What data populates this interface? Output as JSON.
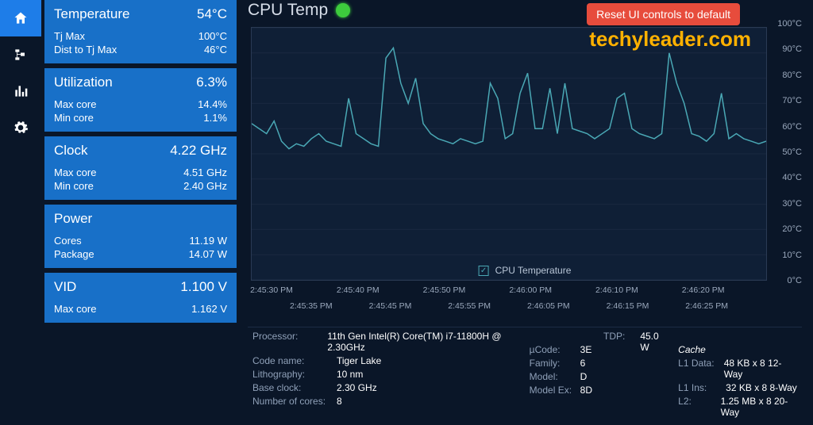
{
  "colors": {
    "bg": "#0a1628",
    "card": "#1870c8",
    "accent": "#1e7de8",
    "line": "#4aa8b5",
    "text": "#b8c5d6",
    "border": "#2a3a54",
    "grid": "#1a2840",
    "tooltip": "#e74c3c",
    "watermark": "#ffb100",
    "green": "#3dcb3d"
  },
  "icon_bar": {
    "items": [
      {
        "name": "home-icon",
        "active": true
      },
      {
        "name": "tree-icon",
        "active": false
      },
      {
        "name": "chart-icon",
        "active": false
      },
      {
        "name": "gear-icon",
        "active": false
      }
    ]
  },
  "cards": {
    "temp": {
      "title": "Temperature",
      "value": "54°C",
      "rows": [
        {
          "label": "Tj Max",
          "value": "100°C"
        },
        {
          "label": "Dist to Tj Max",
          "value": "46°C"
        }
      ]
    },
    "util": {
      "title": "Utilization",
      "value": "6.3%",
      "rows": [
        {
          "label": "Max core",
          "value": "14.4%"
        },
        {
          "label": "Min core",
          "value": "1.1%"
        }
      ]
    },
    "clock": {
      "title": "Clock",
      "value": "4.22 GHz",
      "rows": [
        {
          "label": "Max core",
          "value": "4.51 GHz"
        },
        {
          "label": "Min core",
          "value": "2.40 GHz"
        }
      ]
    },
    "power": {
      "title": "Power",
      "value": "",
      "rows": [
        {
          "label": "Cores",
          "value": "11.19 W"
        },
        {
          "label": "Package",
          "value": "14.07 W"
        }
      ]
    },
    "vid": {
      "title": "VID",
      "value": "1.100 V",
      "rows": [
        {
          "label": "Max core",
          "value": "1.162 V"
        }
      ]
    }
  },
  "main": {
    "title": "CPU Temp",
    "cpu_top_label": "11th Gen Intel(R) Core(TM) i7-11800H @ 2.30GHz",
    "tooltip": "Reset UI controls to default",
    "watermark": "techyleader.com"
  },
  "chart": {
    "type": "line",
    "series_name": "CPU Temperature",
    "ylim": [
      0,
      100
    ],
    "ytick_step": 10,
    "yunit": "°C",
    "line_color": "#4aa8b5",
    "grid_color": "#1a2840",
    "background_color": "#0f1f36",
    "x_labels_row1": [
      "2:45:30 PM",
      "2:45:40 PM",
      "2:45:50 PM",
      "2:46:00 PM",
      "2:46:10 PM",
      "2:46:20 PM"
    ],
    "x_labels_row2": [
      "2:45:35 PM",
      "2:45:45 PM",
      "2:45:55 PM",
      "2:46:05 PM",
      "2:46:15 PM",
      "2:46:25 PM"
    ],
    "values": [
      62,
      60,
      58,
      63,
      55,
      52,
      54,
      53,
      56,
      58,
      55,
      54,
      53,
      72,
      58,
      56,
      54,
      53,
      88,
      92,
      78,
      70,
      80,
      62,
      58,
      56,
      55,
      54,
      56,
      55,
      54,
      55,
      78,
      72,
      56,
      58,
      74,
      82,
      60,
      60,
      76,
      58,
      78,
      60,
      59,
      58,
      56,
      58,
      60,
      72,
      74,
      60,
      58,
      57,
      56,
      58,
      90,
      78,
      70,
      58,
      57,
      55,
      58,
      74,
      56,
      58,
      56,
      55,
      54,
      55
    ]
  },
  "info": {
    "col1": [
      {
        "label": "Processor:",
        "value": "11th Gen Intel(R) Core(TM) i7-11800H @ 2.30GHz"
      },
      {
        "label": "Code name:",
        "value": "Tiger Lake"
      },
      {
        "label": "Lithography:",
        "value": "10 nm"
      },
      {
        "label": "Base clock:",
        "value": "2.30 GHz"
      },
      {
        "label": "Number of cores:",
        "value": "8"
      }
    ],
    "col2": [
      {
        "label": "µCode:",
        "value": "3E"
      },
      {
        "label": "Family:",
        "value": "6"
      },
      {
        "label": "Model:",
        "value": "D"
      },
      {
        "label": "Model Ex:",
        "value": "8D"
      }
    ],
    "col3": [
      {
        "label": "TDP:",
        "value": "45.0 W"
      }
    ],
    "cache_header": "Cache",
    "col4": [
      {
        "label": "L1 Data:",
        "value": "48 KB x 8  12-Way"
      },
      {
        "label": "L1 Ins:",
        "value": "32 KB x 8  8-Way"
      },
      {
        "label": "L2:",
        "value": "1.25 MB x 8  20-Way"
      }
    ]
  }
}
